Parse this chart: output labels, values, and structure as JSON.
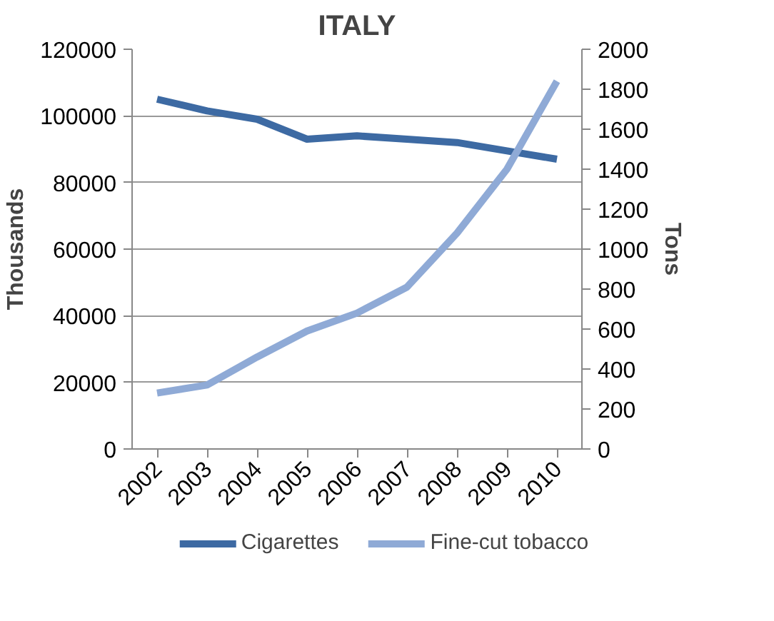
{
  "chart_data": {
    "type": "line",
    "title": "ITALY",
    "ylabel": "Thousands",
    "y2label": "Tons",
    "categories": [
      "2002",
      "2003",
      "2004",
      "2005",
      "2006",
      "2007",
      "2008",
      "2009",
      "2010"
    ],
    "series": [
      {
        "name": "Cigarettes",
        "color": "#3d6aa3",
        "values": [
          105000,
          101500,
          99000,
          93000,
          94000,
          93000,
          92000,
          89500,
          87000
        ]
      },
      {
        "name": "Fine-cut tobacco",
        "color": "#8faad6",
        "axis": "y2",
        "values": [
          280,
          320,
          460,
          590,
          680,
          810,
          1080,
          1400,
          1840
        ]
      }
    ],
    "ylim": [
      0,
      120000
    ],
    "yticks": [
      0,
      20000,
      40000,
      60000,
      80000,
      100000,
      120000
    ],
    "y2lim": [
      0,
      2000
    ],
    "y2ticks": [
      0,
      200,
      400,
      600,
      800,
      1000,
      1200,
      1400,
      1600,
      1800,
      2000
    ],
    "grid": "y",
    "legend": "bottom",
    "marker": "none",
    "line_style": "solid"
  }
}
